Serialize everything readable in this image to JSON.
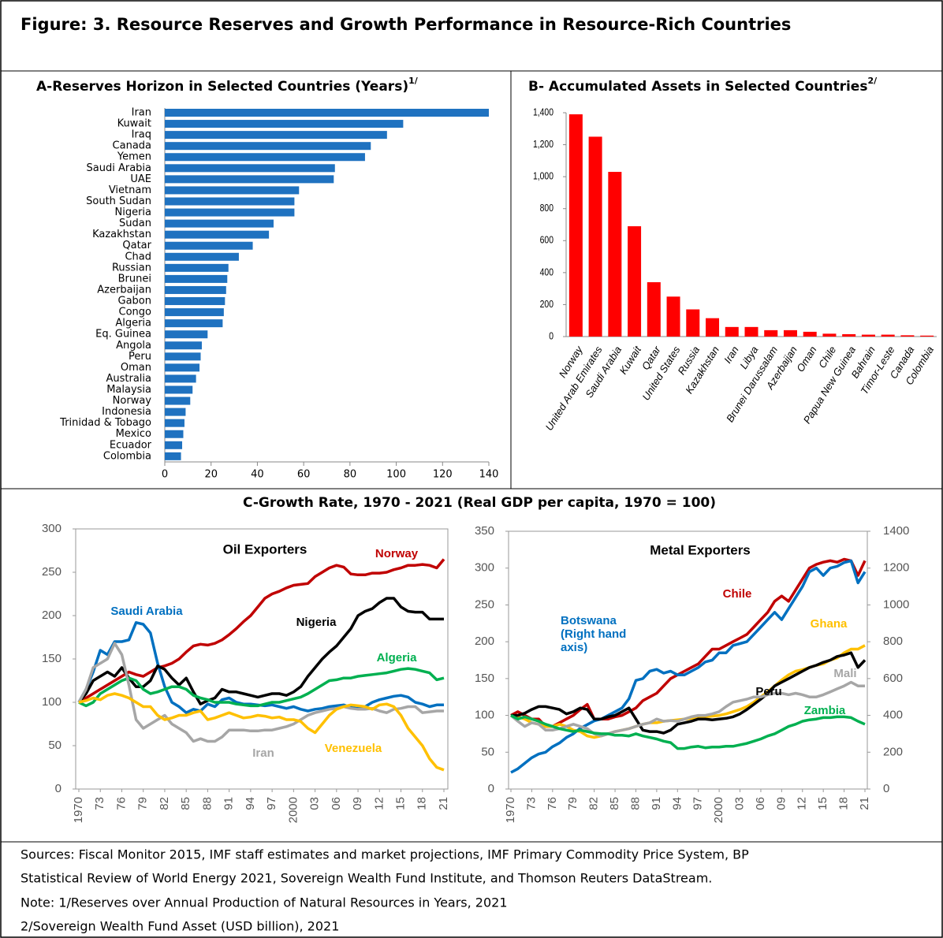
{
  "title": "Figure: 3. Resource Reserves and Growth Performance in Resource-Rich Countries",
  "panel_c_title": "C-Growth Rate, 1970 - 2021 (Real GDP per capita, 1970 = 100)",
  "notes": [
    "Sources: Fiscal Monitor 2015, IMF staff estimates and market projections, IMF Primary Commodity Price System, BP",
    "Statistical Review of World Energy 2021, Sovereign Wealth Fund Institute, and Thomson Reuters DataStream.",
    "Note: 1/Reserves over Annual Production of Natural Resources in Years, 2021",
    "2/Sovereign Wealth Fund Asset (USD billion), 2021"
  ],
  "chart_data": [
    {
      "type": "bar",
      "horizontal": true,
      "title": "A-Reserves Horizon in Selected Countries (Years)",
      "title_note": "1/",
      "color": "#1f72c0",
      "categories": [
        "Iran",
        "Kuwait",
        "Iraq",
        "Canada",
        "Yemen",
        "Saudi Arabia",
        "UAE",
        "Vietnam",
        "South Sudan",
        "Nigeria",
        "Sudan",
        "Kazakhstan",
        "Qatar",
        "Chad",
        "Russian",
        "Brunei",
        "Azerbaijan",
        "Gabon",
        "Congo",
        "Algeria",
        "Eq. Guinea",
        "Angola",
        "Peru",
        "Oman",
        "Australia",
        "Malaysia",
        "Norway",
        "Indonesia",
        "Trinidad & Tobago",
        "Mexico",
        "Ecuador",
        "Colombia"
      ],
      "values": [
        140,
        103,
        96,
        89,
        86.5,
        73.5,
        73,
        58,
        56,
        56,
        47,
        45,
        38,
        32,
        27.5,
        27,
        26.5,
        26,
        25.5,
        25,
        18.5,
        16,
        15.5,
        15,
        13.5,
        12,
        11,
        9,
        8.5,
        8,
        7.5,
        7
      ],
      "xlim": [
        0,
        140
      ],
      "xticks": [
        0,
        20,
        40,
        60,
        80,
        100,
        120,
        140
      ]
    },
    {
      "type": "bar",
      "title": "B- Accumulated Assets in Selected Countries",
      "title_note": "2/",
      "color": "#ff0000",
      "categories": [
        "Norway",
        "United Arab Emirates",
        "Saudi Arabia",
        "Kuwait",
        "Qatar",
        "United States",
        "Russia",
        "Kazakhstan",
        "Iran",
        "Libya",
        "Brunei Darussalam",
        "Azerbaijan",
        "Oman",
        "Chile",
        "Papua New Guinea",
        "Bahrain",
        "Timor-Leste",
        "Canada",
        "Colombia"
      ],
      "values": [
        1390,
        1250,
        1030,
        690,
        340,
        250,
        170,
        115,
        60,
        60,
        40,
        40,
        30,
        18,
        15,
        12,
        12,
        8,
        6
      ],
      "ylim": [
        0,
        1400
      ],
      "yticks": [
        0,
        200,
        400,
        600,
        800,
        {
          "value": 1000,
          "label": "1,000"
        },
        {
          "value": 1200,
          "label": "1,200"
        },
        {
          "value": 1400,
          "label": "1,400"
        }
      ]
    },
    {
      "type": "line",
      "title": "Oil Exporters",
      "x": [
        1970,
        1971,
        1972,
        1973,
        1974,
        1975,
        1976,
        1977,
        1978,
        1979,
        1980,
        1981,
        1982,
        1983,
        1984,
        1985,
        1986,
        1987,
        1988,
        1989,
        1990,
        1991,
        1992,
        1993,
        1994,
        1995,
        1996,
        1997,
        1998,
        1999,
        2000,
        2001,
        2002,
        2003,
        2004,
        2005,
        2006,
        2007,
        2008,
        2009,
        2010,
        2011,
        2012,
        2013,
        2014,
        2015,
        2016,
        2017,
        2018,
        2019,
        2020,
        2021
      ],
      "xlim": [
        1970,
        2021
      ],
      "xticks": [
        1970,
        {
          "value": 1973,
          "label": "73"
        },
        {
          "value": 1976,
          "label": "76"
        },
        {
          "value": 1979,
          "label": "79"
        },
        {
          "value": 1982,
          "label": "82"
        },
        {
          "value": 1985,
          "label": "85"
        },
        {
          "value": 1988,
          "label": "88"
        },
        {
          "value": 1991,
          "label": "91"
        },
        {
          "value": 1994,
          "label": "94"
        },
        {
          "value": 1997,
          "label": "97"
        },
        2000,
        {
          "value": 2003,
          "label": "03"
        },
        {
          "value": 2006,
          "label": "06"
        },
        {
          "value": 2009,
          "label": "09"
        },
        {
          "value": 2012,
          "label": "12"
        },
        {
          "value": 2015,
          "label": "15"
        },
        {
          "value": 2018,
          "label": "18"
        },
        {
          "value": 2021,
          "label": "21"
        }
      ],
      "ylim": [
        0,
        300
      ],
      "yticks": [
        0,
        50,
        100,
        150,
        200,
        250,
        300
      ],
      "series": [
        {
          "name": "Norway",
          "color": "#c00000",
          "values": [
            100,
            105,
            110,
            115,
            120,
            125,
            130,
            135,
            132,
            130,
            135,
            140,
            142,
            145,
            150,
            158,
            165,
            167,
            166,
            168,
            172,
            178,
            185,
            193,
            200,
            210,
            220,
            225,
            228,
            232,
            235,
            236,
            237,
            245,
            250,
            255,
            258,
            256,
            248,
            247,
            247,
            249,
            249,
            250,
            253,
            255,
            258,
            258,
            259,
            258,
            255,
            265
          ]
        },
        {
          "name": "Saudi Arabia",
          "color": "#0070c0",
          "values": [
            100,
            115,
            135,
            160,
            155,
            170,
            170,
            172,
            192,
            190,
            180,
            145,
            118,
            100,
            95,
            88,
            92,
            90,
            98,
            95,
            103,
            105,
            100,
            98,
            98,
            97,
            96,
            97,
            95,
            93,
            95,
            92,
            90,
            92,
            93,
            95,
            96,
            97,
            94,
            93,
            95,
            100,
            103,
            105,
            107,
            108,
            106,
            100,
            98,
            95,
            97,
            97
          ]
        },
        {
          "name": "Nigeria",
          "color": "#000000",
          "values": [
            100,
            110,
            125,
            130,
            135,
            130,
            140,
            128,
            118,
            118,
            125,
            142,
            138,
            128,
            120,
            128,
            112,
            98,
            102,
            105,
            115,
            112,
            112,
            110,
            108,
            106,
            108,
            110,
            110,
            108,
            112,
            118,
            130,
            140,
            150,
            158,
            165,
            175,
            185,
            200,
            205,
            208,
            215,
            220,
            220,
            210,
            205,
            204,
            204,
            196,
            196,
            196
          ]
        },
        {
          "name": "Algeria",
          "color": "#00b050",
          "values": [
            100,
            96,
            100,
            110,
            115,
            120,
            125,
            128,
            125,
            115,
            110,
            112,
            115,
            118,
            118,
            115,
            108,
            105,
            103,
            100,
            100,
            100,
            98,
            97,
            96,
            96,
            98,
            100,
            100,
            102,
            104,
            106,
            110,
            115,
            120,
            125,
            126,
            128,
            128,
            130,
            131,
            132,
            133,
            134,
            136,
            138,
            139,
            138,
            136,
            134,
            126,
            128
          ]
        },
        {
          "name": "Iran",
          "color": "#a6a6a6",
          "values": [
            100,
            115,
            140,
            145,
            150,
            168,
            155,
            120,
            80,
            70,
            75,
            80,
            85,
            75,
            70,
            65,
            55,
            58,
            55,
            55,
            60,
            68,
            68,
            68,
            67,
            67,
            68,
            68,
            70,
            72,
            75,
            80,
            85,
            88,
            90,
            92,
            93,
            95,
            93,
            92,
            92,
            93,
            90,
            88,
            92,
            93,
            95,
            95,
            88,
            89,
            90,
            90
          ]
        },
        {
          "name": "Venezuela",
          "color": "#ffc000",
          "values": [
            100,
            102,
            105,
            103,
            108,
            110,
            108,
            105,
            100,
            95,
            95,
            85,
            80,
            82,
            85,
            85,
            88,
            90,
            80,
            82,
            85,
            88,
            85,
            82,
            83,
            85,
            84,
            82,
            83,
            80,
            80,
            78,
            70,
            65,
            75,
            85,
            92,
            95,
            97,
            96,
            95,
            92,
            97,
            98,
            95,
            85,
            70,
            60,
            50,
            35,
            25,
            22
          ]
        }
      ]
    },
    {
      "type": "line",
      "title": "Metal Exporters",
      "x": [
        1970,
        1971,
        1972,
        1973,
        1974,
        1975,
        1976,
        1977,
        1978,
        1979,
        1980,
        1981,
        1982,
        1983,
        1984,
        1985,
        1986,
        1987,
        1988,
        1989,
        1990,
        1991,
        1992,
        1993,
        1994,
        1995,
        1996,
        1997,
        1998,
        1999,
        2000,
        2001,
        2002,
        2003,
        2004,
        2005,
        2006,
        2007,
        2008,
        2009,
        2010,
        2011,
        2012,
        2013,
        2014,
        2015,
        2016,
        2017,
        2018,
        2019,
        2020,
        2021
      ],
      "xlim": [
        1970,
        2021
      ],
      "xticks": [
        1970,
        {
          "value": 1973,
          "label": "73"
        },
        {
          "value": 1976,
          "label": "76"
        },
        {
          "value": 1979,
          "label": "79"
        },
        {
          "value": 1982,
          "label": "82"
        },
        {
          "value": 1985,
          "label": "85"
        },
        {
          "value": 1988,
          "label": "88"
        },
        {
          "value": 1991,
          "label": "91"
        },
        {
          "value": 1994,
          "label": "94"
        },
        {
          "value": 1997,
          "label": "97"
        },
        2000,
        {
          "value": 2003,
          "label": "03"
        },
        {
          "value": 2006,
          "label": "06"
        },
        {
          "value": 2009,
          "label": "09"
        },
        {
          "value": 2012,
          "label": "12"
        },
        {
          "value": 2015,
          "label": "15"
        },
        {
          "value": 2018,
          "label": "18"
        },
        {
          "value": 2021,
          "label": "21"
        }
      ],
      "ylim": [
        0,
        350
      ],
      "yticks": [
        0,
        50,
        100,
        150,
        200,
        250,
        300,
        350
      ],
      "y2lim": [
        0,
        1400
      ],
      "y2ticks": [
        0,
        200,
        400,
        600,
        800,
        1000,
        1200,
        1400
      ],
      "series": [
        {
          "name": "Chile",
          "color": "#c00000",
          "values": [
            100,
            105,
            100,
            95,
            95,
            85,
            85,
            90,
            95,
            100,
            108,
            115,
            95,
            95,
            95,
            98,
            100,
            105,
            110,
            120,
            125,
            130,
            140,
            150,
            155,
            160,
            165,
            170,
            180,
            190,
            190,
            195,
            200,
            205,
            210,
            220,
            230,
            240,
            255,
            262,
            255,
            270,
            285,
            300,
            305,
            308,
            310,
            308,
            312,
            310,
            290,
            310
          ]
        },
        {
          "name": "Botswana (Right hand axis)",
          "color": "#0070c0",
          "axis": "y2",
          "values": [
            90,
            110,
            140,
            170,
            190,
            200,
            230,
            250,
            280,
            300,
            330,
            350,
            370,
            380,
            400,
            420,
            440,
            490,
            590,
            600,
            640,
            650,
            630,
            640,
            620,
            620,
            640,
            660,
            690,
            700,
            740,
            740,
            780,
            790,
            800,
            840,
            880,
            920,
            960,
            920,
            980,
            1040,
            1100,
            1180,
            1200,
            1160,
            1200,
            1210,
            1230,
            1240,
            1120,
            1180
          ]
        },
        {
          "name": "Ghana",
          "color": "#ffc000",
          "values": [
            100,
            98,
            95,
            90,
            88,
            85,
            85,
            88,
            85,
            80,
            78,
            72,
            70,
            72,
            75,
            78,
            80,
            82,
            85,
            88,
            90,
            90,
            92,
            93,
            94,
            95,
            96,
            97,
            98,
            99,
            100,
            102,
            105,
            108,
            112,
            118,
            125,
            132,
            140,
            148,
            155,
            160,
            162,
            165,
            168,
            170,
            175,
            178,
            185,
            190,
            190,
            195
          ]
        },
        {
          "name": "Peru",
          "color": "#000000",
          "values": [
            100,
            100,
            103,
            108,
            112,
            112,
            110,
            108,
            102,
            105,
            110,
            108,
            95,
            95,
            98,
            100,
            105,
            110,
            95,
            80,
            78,
            78,
            76,
            80,
            88,
            90,
            92,
            95,
            95,
            94,
            95,
            96,
            98,
            102,
            108,
            115,
            122,
            130,
            140,
            145,
            150,
            155,
            160,
            165,
            168,
            172,
            175,
            180,
            182,
            185,
            165,
            175
          ]
        },
        {
          "name": "Mali",
          "color": "#a6a6a6",
          "values": [
            100,
            92,
            85,
            90,
            88,
            80,
            80,
            82,
            85,
            88,
            85,
            82,
            75,
            72,
            75,
            78,
            80,
            82,
            85,
            88,
            90,
            95,
            92,
            93,
            92,
            95,
            98,
            100,
            100,
            102,
            105,
            112,
            118,
            120,
            122,
            125,
            125,
            128,
            130,
            130,
            128,
            130,
            128,
            125,
            125,
            128,
            132,
            136,
            140,
            145,
            140,
            140
          ]
        },
        {
          "name": "Zambia",
          "color": "#00b050",
          "values": [
            100,
            95,
            98,
            95,
            92,
            88,
            85,
            82,
            80,
            78,
            80,
            78,
            76,
            75,
            75,
            73,
            73,
            72,
            75,
            72,
            70,
            68,
            65,
            63,
            55,
            55,
            57,
            58,
            56,
            57,
            57,
            58,
            58,
            60,
            62,
            65,
            68,
            72,
            75,
            80,
            85,
            88,
            92,
            94,
            95,
            97,
            97,
            98,
            98,
            97,
            92,
            88
          ]
        }
      ]
    }
  ]
}
